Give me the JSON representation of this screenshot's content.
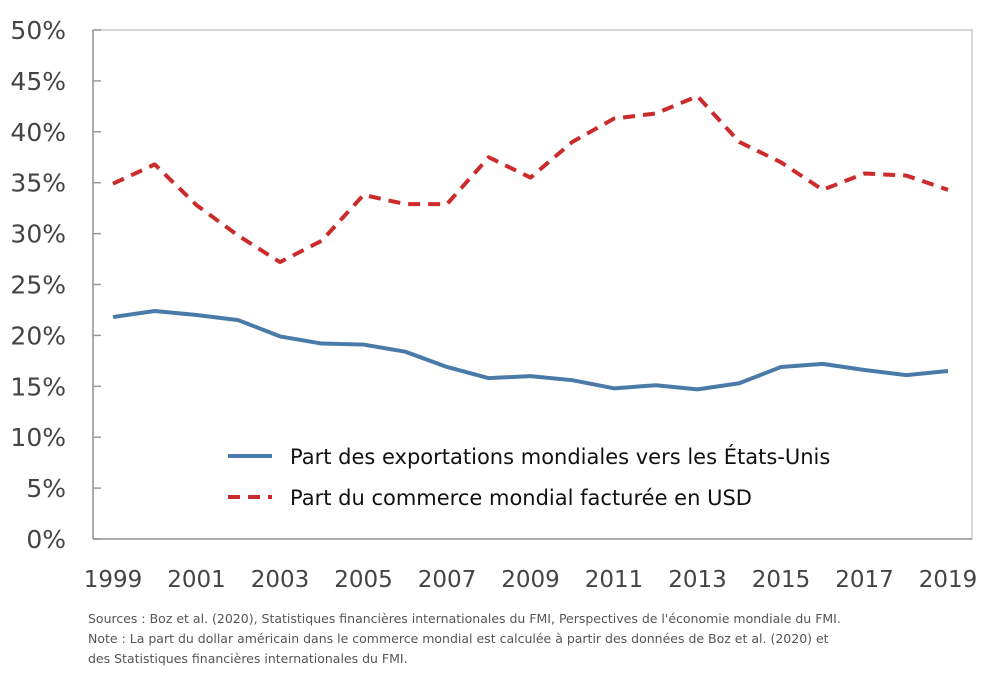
{
  "chart_data": {
    "type": "line",
    "title": "",
    "xlabel": "",
    "ylabel": "",
    "x": [
      1999,
      2000,
      2001,
      2002,
      2003,
      2004,
      2005,
      2006,
      2007,
      2008,
      2009,
      2010,
      2011,
      2012,
      2013,
      2014,
      2015,
      2016,
      2017,
      2018,
      2019
    ],
    "xtick_labels": [
      "1999",
      "2001",
      "2003",
      "2005",
      "2007",
      "2009",
      "2011",
      "2013",
      "2015",
      "2017",
      "2019"
    ],
    "ytick_labels": [
      "0%",
      "5%",
      "10%",
      "15%",
      "20%",
      "25%",
      "30%",
      "35%",
      "40%",
      "45%",
      "50%"
    ],
    "ylim": [
      0,
      50
    ],
    "grid": false,
    "legend_placement": "bottom-center",
    "series": [
      {
        "name": "Part des exportations mondiales vers les États-Unis",
        "color": "#4a7aa7",
        "style": "solid",
        "values": [
          21.8,
          22.4,
          22.0,
          21.5,
          19.9,
          19.2,
          19.1,
          18.4,
          16.9,
          15.8,
          16.0,
          15.6,
          14.8,
          15.1,
          14.7,
          15.3,
          16.9,
          17.2,
          16.6,
          16.1,
          16.5
        ]
      },
      {
        "name": "Part du commerce mondial facturée en USD",
        "color": "#cc2b2b",
        "style": "dashed",
        "values": [
          34.9,
          36.8,
          32.8,
          29.8,
          27.2,
          29.3,
          33.8,
          32.9,
          32.9,
          37.5,
          35.5,
          39.0,
          41.3,
          41.8,
          43.5,
          39.0,
          37.0,
          34.3,
          35.9,
          35.7,
          34.3
        ]
      }
    ]
  },
  "notes": {
    "sources": "Sources : Boz et al. (2020), Statistiques financières internationales du FMI, Perspectives de l'économie mondiale du FMI.",
    "note_line1": "Note : La part du dollar américain dans le commerce mondial est calculée à partir des données de Boz et al. (2020) et",
    "note_line2": "des Statistiques financières internationales du FMI."
  }
}
